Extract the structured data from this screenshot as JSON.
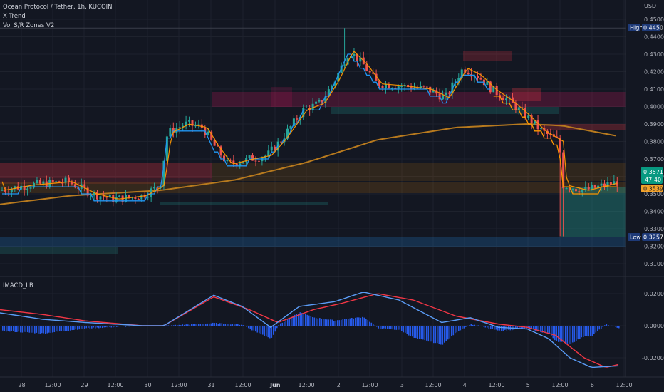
{
  "header": {
    "symbol_title": "Ocean Protocol / Tether, 1h, KUCOIN",
    "indicator_1": "X Trend",
    "indicator_2": "Vol S/R Zones V2",
    "macd_label": "IMACD_LB"
  },
  "axis": {
    "currency": "USDT",
    "price_ticks": [
      "0.4500",
      "0.4400",
      "0.4300",
      "0.4200",
      "0.4100",
      "0.4000",
      "0.3900",
      "0.3800",
      "0.3700",
      "0.3600",
      "0.3500",
      "0.3400",
      "0.3300",
      "0.3200",
      "0.3100"
    ],
    "macd_ticks": [
      "0.0200",
      "0.0000",
      "-0.0200"
    ],
    "time_ticks": [
      "28",
      "12:00",
      "29",
      "12:00",
      "30",
      "12:00",
      "31",
      "12:00",
      "Jun",
      "12:00",
      "2",
      "12:00",
      "3",
      "12:00",
      "4",
      "12:00",
      "5",
      "12:00",
      "6",
      "12:00"
    ]
  },
  "tags": {
    "high_label": "High",
    "high_value": "0.4450",
    "low_label": "Low",
    "low_value": "0.3257",
    "last_price": "0.3571",
    "countdown": "47:40",
    "ma_value": "0.3539"
  },
  "colors": {
    "background": "#131722",
    "up": "#26a69a",
    "down": "#ef5350",
    "trend_up": "#2196f3",
    "trend_orange": "#ff9800",
    "ma_line": "#b87a1e",
    "macd_line": "#5b9cf6",
    "signal_line": "#f23645",
    "histogram": "#2962ff"
  },
  "chart_data": [
    {
      "type": "candlestick",
      "title": "Ocean Protocol / Tether, 1h, KUCOIN",
      "x_labels": [
        "28",
        "12:00",
        "29",
        "12:00",
        "30",
        "12:00",
        "31",
        "12:00",
        "Jun",
        "12:00",
        "2",
        "12:00",
        "3",
        "12:00",
        "4",
        "12:00",
        "5",
        "12:00",
        "6",
        "12:00"
      ],
      "ylim": [
        0.305,
        0.455
      ],
      "y_ticks": [
        0.45,
        0.44,
        0.43,
        0.42,
        0.41,
        0.4,
        0.39,
        0.38,
        0.37,
        0.36,
        0.35,
        0.34,
        0.33,
        0.32,
        0.31
      ],
      "price_path_keypoints": [
        [
          0,
          0.352
        ],
        [
          40,
          0.355
        ],
        [
          95,
          0.357
        ],
        [
          130,
          0.35
        ],
        [
          160,
          0.347
        ],
        [
          200,
          0.349
        ],
        [
          225,
          0.355
        ],
        [
          235,
          0.385
        ],
        [
          260,
          0.39
        ],
        [
          285,
          0.388
        ],
        [
          300,
          0.378
        ],
        [
          320,
          0.367
        ],
        [
          350,
          0.37
        ],
        [
          375,
          0.372
        ],
        [
          395,
          0.381
        ],
        [
          425,
          0.398
        ],
        [
          450,
          0.402
        ],
        [
          470,
          0.415
        ],
        [
          490,
          0.432
        ],
        [
          510,
          0.424
        ],
        [
          530,
          0.413
        ],
        [
          560,
          0.412
        ],
        [
          600,
          0.41
        ],
        [
          625,
          0.405
        ],
        [
          650,
          0.422
        ],
        [
          670,
          0.418
        ],
        [
          690,
          0.41
        ],
        [
          715,
          0.403
        ],
        [
          735,
          0.396
        ],
        [
          760,
          0.386
        ],
        [
          785,
          0.38
        ],
        [
          790,
          0.355
        ],
        [
          820,
          0.352
        ],
        [
          870,
          0.357
        ]
      ],
      "high": 0.445,
      "low": 0.3257,
      "last": 0.3571,
      "series": [
        {
          "name": "X Trend"
        },
        {
          "name": "Vol S/R Zones V2"
        }
      ]
    },
    {
      "type": "line",
      "title": "IMACD_LB",
      "ylim": [
        -0.028,
        0.028
      ],
      "y_ticks": [
        0.02,
        0.0,
        -0.02
      ],
      "macd_keypoints": [
        [
          0,
          0.008
        ],
        [
          60,
          0.004
        ],
        [
          120,
          0.002
        ],
        [
          200,
          0.0
        ],
        [
          230,
          0.0
        ],
        [
          300,
          0.019
        ],
        [
          340,
          0.012
        ],
        [
          380,
          -0.001
        ],
        [
          420,
          0.012
        ],
        [
          470,
          0.015
        ],
        [
          510,
          0.021
        ],
        [
          560,
          0.016
        ],
        [
          620,
          0.002
        ],
        [
          660,
          0.005
        ],
        [
          700,
          -0.001
        ],
        [
          740,
          -0.002
        ],
        [
          770,
          -0.008
        ],
        [
          800,
          -0.02
        ],
        [
          830,
          -0.026
        ],
        [
          870,
          -0.025
        ]
      ],
      "signal_keypoints": [
        [
          0,
          0.01
        ],
        [
          60,
          0.007
        ],
        [
          120,
          0.003
        ],
        [
          200,
          0.0
        ],
        [
          230,
          0.0
        ],
        [
          300,
          0.018
        ],
        [
          350,
          0.01
        ],
        [
          390,
          0.002
        ],
        [
          440,
          0.01
        ],
        [
          480,
          0.014
        ],
        [
          530,
          0.02
        ],
        [
          580,
          0.016
        ],
        [
          640,
          0.006
        ],
        [
          700,
          0.001
        ],
        [
          740,
          -0.001
        ],
        [
          780,
          -0.006
        ],
        [
          820,
          -0.02
        ],
        [
          850,
          -0.026
        ],
        [
          870,
          -0.024
        ]
      ]
    }
  ]
}
